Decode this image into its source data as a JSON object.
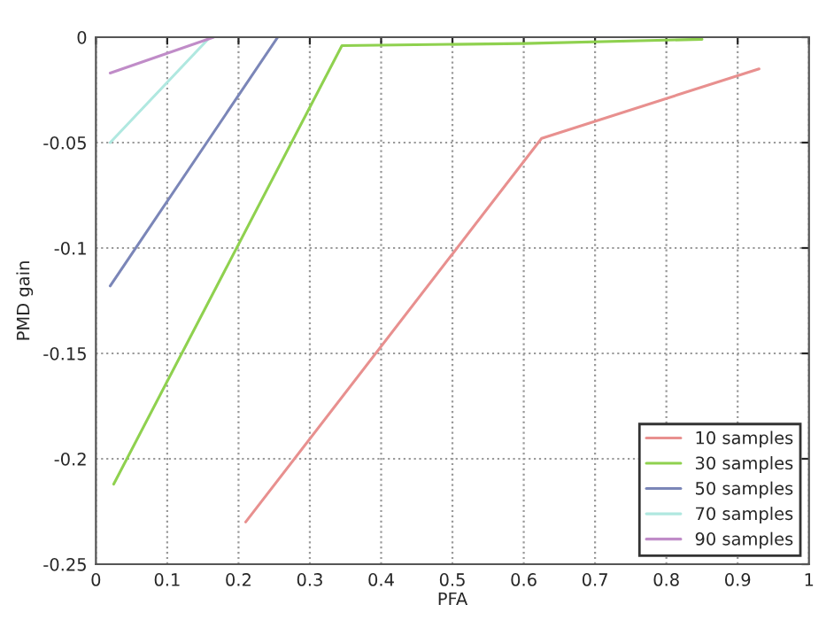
{
  "chart_data": {
    "type": "line",
    "xlabel": "PFA",
    "ylabel": "PMD gain",
    "xlim": [
      0,
      1
    ],
    "xticks": [
      0,
      0.1,
      0.2,
      0.3,
      0.4,
      0.5,
      0.6,
      0.7,
      0.8,
      0.9,
      1
    ],
    "ylim": [
      -0.25,
      0
    ],
    "yticks": [
      -0.25,
      -0.2,
      -0.15,
      -0.1,
      -0.05,
      0
    ],
    "grid": true,
    "legend": "bottom right",
    "series": [
      {
        "name": "10 samples",
        "color": "#e8908f",
        "x": [
          0.21,
          0.625,
          0.93
        ],
        "values": [
          -0.23,
          -0.048,
          -0.015
        ]
      },
      {
        "name": "30 samples",
        "color": "#8fd14f",
        "x": [
          0.025,
          0.345,
          0.6,
          0.85
        ],
        "values": [
          -0.212,
          -0.004,
          -0.003,
          -0.001
        ]
      },
      {
        "name": "50 samples",
        "color": "#7b86b8",
        "x": [
          0.02,
          0.255
        ],
        "values": [
          -0.118,
          0
        ]
      },
      {
        "name": "70 samples",
        "color": "#b0e8e0",
        "x": [
          0.02,
          0.16
        ],
        "values": [
          -0.05,
          0
        ]
      },
      {
        "name": "90 samples",
        "color": "#c08cc8",
        "x": [
          0.02,
          0.165
        ],
        "values": [
          -0.017,
          0
        ]
      }
    ]
  }
}
